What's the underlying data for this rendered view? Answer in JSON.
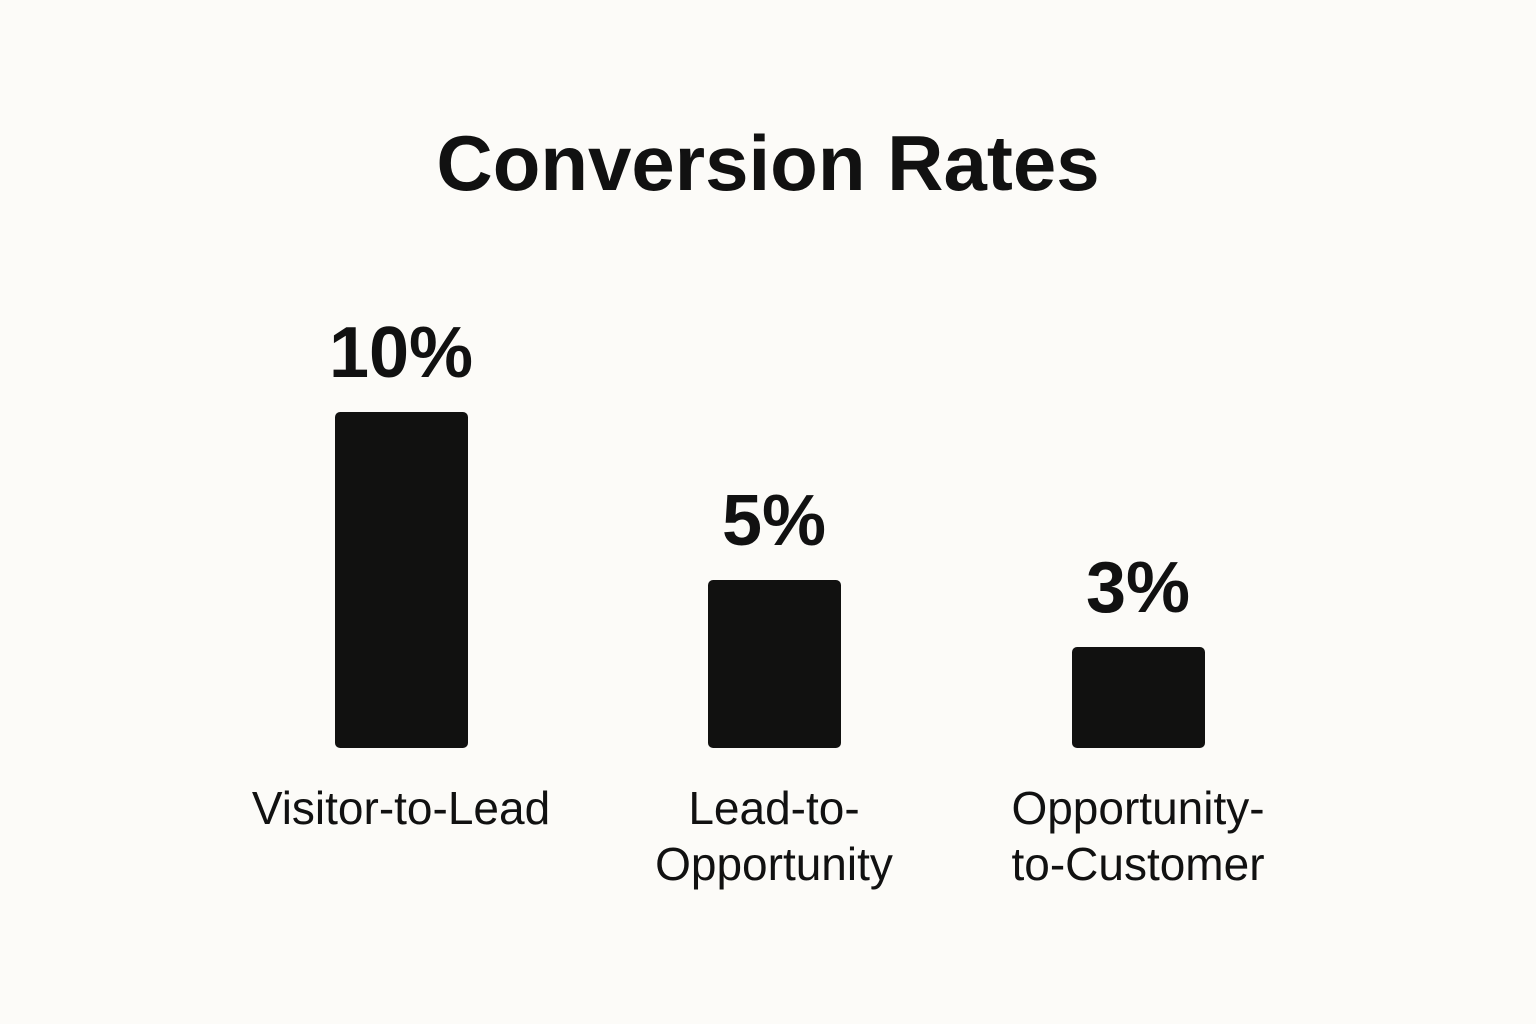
{
  "chart_data": {
    "type": "bar",
    "title": "Conversion Rates",
    "categories": [
      "Visitor-to-Lead",
      "Lead-to-Opportunity",
      "Opportunity-to-Customer"
    ],
    "values": [
      10,
      5,
      3
    ],
    "value_labels": [
      "10%",
      "5%",
      "3%"
    ],
    "color": "#111110"
  }
}
